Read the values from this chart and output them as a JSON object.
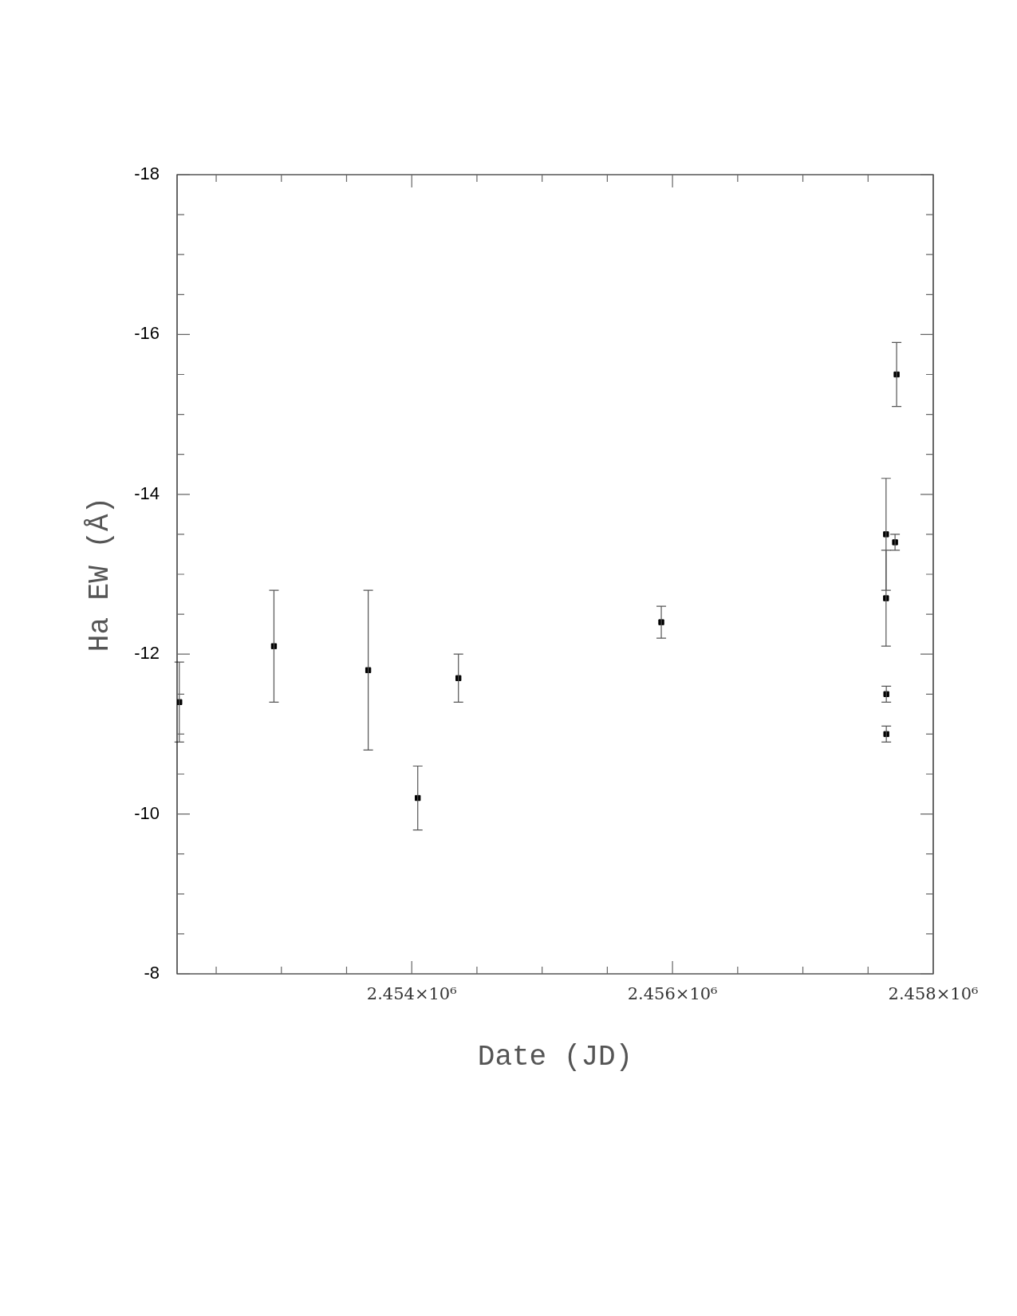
{
  "chart_data": {
    "type": "scatter",
    "xlabel": "Date (JD)",
    "ylabel": "Ha EW (Å)",
    "x": [
      2452217,
      2452943,
      2453666,
      2454046,
      2454358,
      2455914,
      2457638,
      2457638,
      2457640,
      2457640,
      2457707,
      2457719
    ],
    "series": [
      {
        "color": "#000000",
        "values": [
          -11.4,
          -12.1,
          -11.8,
          -10.2,
          -11.7,
          -12.4,
          -13.5,
          -12.7,
          -11.5,
          -11.0,
          -13.4,
          -15.5
        ],
        "errors": [
          0.5,
          0.7,
          1.0,
          0.4,
          0.3,
          0.2,
          0.7,
          0.6,
          0.1,
          0.1,
          0.1,
          0.4
        ]
      }
    ],
    "marker": "square",
    "grid": false,
    "legend": false,
    "xlim": [
      2452200,
      2458000
    ],
    "xticks": [
      {
        "value": 2452500,
        "label": null
      },
      {
        "value": 2453000,
        "label": null
      },
      {
        "value": 2453500,
        "label": null
      },
      {
        "value": 2454000,
        "label": "2.454×10⁶"
      },
      {
        "value": 2454500,
        "label": null
      },
      {
        "value": 2455000,
        "label": null
      },
      {
        "value": 2455500,
        "label": null
      },
      {
        "value": 2456000,
        "label": "2.456×10⁶"
      },
      {
        "value": 2456500,
        "label": null
      },
      {
        "value": 2457000,
        "label": null
      },
      {
        "value": 2457500,
        "label": null
      },
      {
        "value": 2458000,
        "label": "2.458×10⁶"
      }
    ],
    "ylim": [
      -8,
      -18
    ],
    "yticks": [
      -8,
      {
        "value": -8.5,
        "label": null
      },
      {
        "value": -9,
        "label": null
      },
      {
        "value": -9.5,
        "label": null
      },
      -10,
      {
        "value": -10.5,
        "label": null
      },
      {
        "value": -11,
        "label": null
      },
      {
        "value": -11.5,
        "label": null
      },
      -12,
      {
        "value": -12.5,
        "label": null
      },
      {
        "value": -13,
        "label": null
      },
      {
        "value": -13.5,
        "label": null
      },
      -14,
      {
        "value": -14.5,
        "label": null
      },
      {
        "value": -15,
        "label": null
      },
      {
        "value": -15.5,
        "label": null
      },
      -16,
      {
        "value": -16.5,
        "label": null
      },
      {
        "value": -17,
        "label": null
      },
      {
        "value": -17.5,
        "label": null
      },
      -18
    ]
  }
}
